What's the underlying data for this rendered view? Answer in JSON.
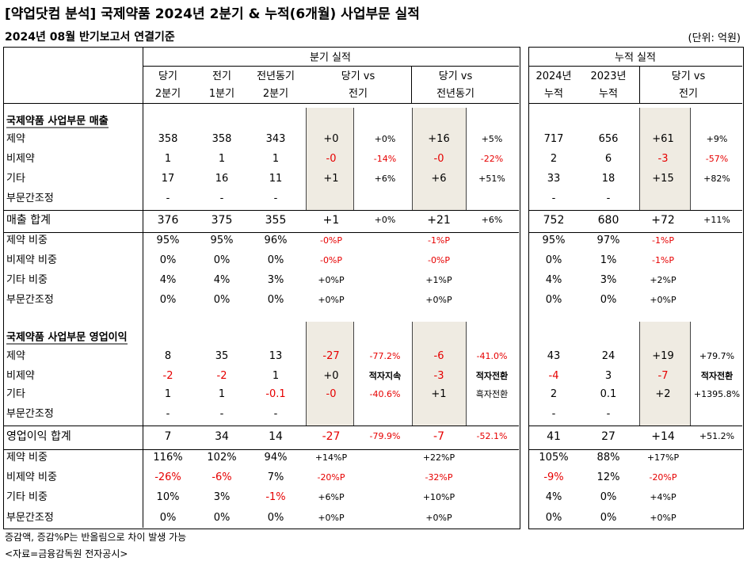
{
  "title": "[약업닷컴 분석] 국제약품 2024년 2분기 & 누적(6개월) 사업부문 실적",
  "subtitle": "2024년 08월 반기보고서 연결기준",
  "unit": "(단위: 억원)",
  "groups": {
    "quarterly": "분기 실적",
    "cumulative": "누적 실적"
  },
  "headers": {
    "cur_q": [
      "당기",
      "2분기"
    ],
    "prev_q": [
      "전기",
      "1분기"
    ],
    "yoy_q": [
      "전년동기",
      "2분기"
    ],
    "vs_prev": [
      "당기 vs",
      "전기"
    ],
    "vs_yoy": [
      "당기 vs",
      "전년동기"
    ],
    "cum_2024": [
      "2024년",
      "누적"
    ],
    "cum_2023": [
      "2023년",
      "누적"
    ],
    "vs_cum": [
      "당기 vs",
      "전기"
    ]
  },
  "sections": [
    {
      "title": "국제약품 사업부문 매출",
      "rows": [
        {
          "label": "제약",
          "cells": [
            "358",
            "358",
            "343",
            "+0",
            "+0%",
            "+16",
            "+5%",
            "717",
            "656",
            "+61",
            "+9%"
          ]
        },
        {
          "label": "비제약",
          "cells": [
            "1",
            "1",
            "1",
            "-0",
            "-14%",
            "-0",
            "-22%",
            "2",
            "6",
            "-3",
            "-57%"
          ]
        },
        {
          "label": "기타",
          "cells": [
            "17",
            "16",
            "11",
            "+1",
            "+6%",
            "+6",
            "+51%",
            "33",
            "18",
            "+15",
            "+82%"
          ]
        },
        {
          "label": "부문간조정",
          "cells": [
            "-",
            "-",
            "-",
            "",
            "",
            "",
            "",
            "-",
            "-",
            "",
            ""
          ]
        },
        {
          "label": "매출 합계",
          "total": true,
          "cells": [
            "376",
            "375",
            "355",
            "+1",
            "+0%",
            "+21",
            "+6%",
            "752",
            "680",
            "+72",
            "+11%"
          ]
        },
        {
          "label": "제약 비중",
          "small": true,
          "cells": [
            "95%",
            "95%",
            "96%",
            "-0%P",
            "",
            "-1%P",
            "",
            "95%",
            "97%",
            "-1%P",
            ""
          ]
        },
        {
          "label": "비제약 비중",
          "small": true,
          "cells": [
            "0%",
            "0%",
            "0%",
            "-0%P",
            "",
            "-0%P",
            "",
            "0%",
            "1%",
            "-1%P",
            ""
          ]
        },
        {
          "label": "기타 비중",
          "small": true,
          "cells": [
            "4%",
            "4%",
            "3%",
            "+0%P",
            "",
            "+1%P",
            "",
            "4%",
            "3%",
            "+2%P",
            ""
          ]
        },
        {
          "label": "부문간조정",
          "small": true,
          "cells": [
            "0%",
            "0%",
            "0%",
            "+0%P",
            "",
            "+0%P",
            "",
            "0%",
            "0%",
            "+0%P",
            ""
          ]
        }
      ]
    },
    {
      "title": "국제약품 사업부문 영업이익",
      "rows": [
        {
          "label": "제약",
          "cells": [
            "8",
            "35",
            "13",
            "-27",
            "-77.2%",
            "-6",
            "-41.0%",
            "43",
            "24",
            "+19",
            "+79.7%"
          ]
        },
        {
          "label": "비제약",
          "cells": [
            "-2",
            "-2",
            "1",
            "+0",
            "적자지속",
            "-3",
            "적자전환",
            "-4",
            "3",
            "-7",
            "적자전환"
          ]
        },
        {
          "label": "기타",
          "cells": [
            "1",
            "1",
            "-0.1",
            "-0",
            "-40.6%",
            "+1",
            "흑자전환",
            "2",
            "0.1",
            "+2",
            "+1395.8%"
          ]
        },
        {
          "label": "부문간조정",
          "cells": [
            "-",
            "-",
            "-",
            "",
            "",
            "",
            "",
            "-",
            "-",
            "",
            ""
          ]
        },
        {
          "label": "영업이익 합계",
          "total": true,
          "cells": [
            "7",
            "34",
            "14",
            "-27",
            "-79.9%",
            "-7",
            "-52.1%",
            "41",
            "27",
            "+14",
            "+51.2%"
          ]
        },
        {
          "label": "제약 비중",
          "small": true,
          "cells": [
            "116%",
            "102%",
            "94%",
            "+14%P",
            "",
            "+22%P",
            "",
            "105%",
            "88%",
            "+17%P",
            ""
          ]
        },
        {
          "label": "비제약 비중",
          "small": true,
          "cells": [
            "-26%",
            "-6%",
            "7%",
            "-20%P",
            "",
            "-32%P",
            "",
            "-9%",
            "12%",
            "-20%P",
            ""
          ]
        },
        {
          "label": "기타 비중",
          "small": true,
          "cells": [
            "10%",
            "3%",
            "-1%",
            "+6%P",
            "",
            "+10%P",
            "",
            "4%",
            "0%",
            "+4%P",
            ""
          ]
        },
        {
          "label": "부문간조정",
          "small": true,
          "cells": [
            "0%",
            "0%",
            "0%",
            "+0%P",
            "",
            "+0%P",
            "",
            "0%",
            "0%",
            "+0%P",
            ""
          ]
        }
      ]
    }
  ],
  "colors": {
    "highlight_bg": "#efebe2",
    "negative": "#e60000"
  },
  "footnote": "증감액, 증감%P는 반올림으로 차이 발생 가능",
  "source": "<자료=금융감독원 전자공시>"
}
